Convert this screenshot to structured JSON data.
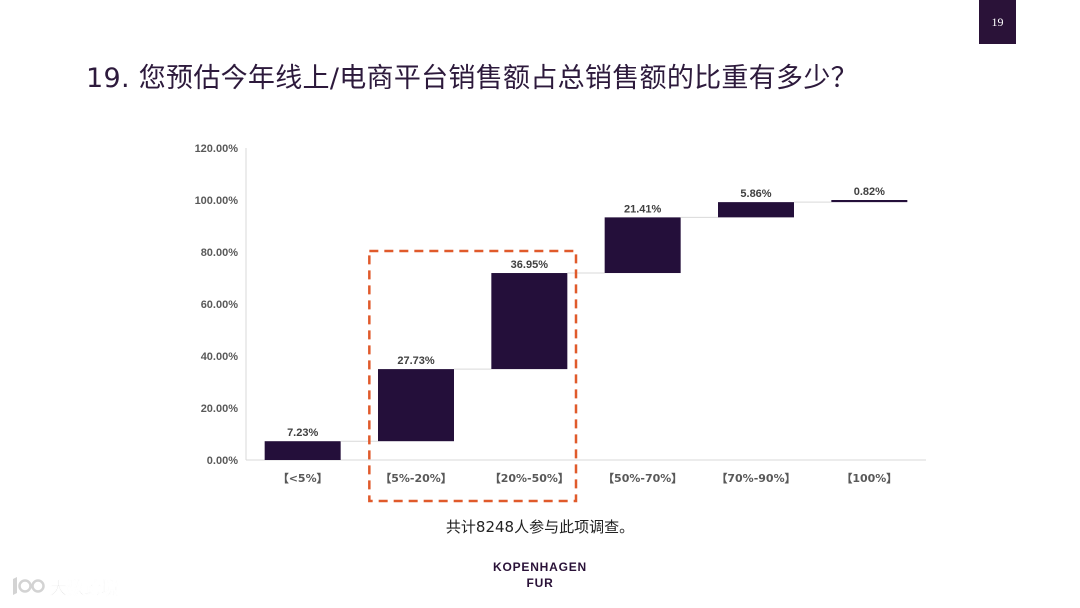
{
  "page_number": "19",
  "title": "19. 您预估今年线上/电商平台销售额占总销售额的比重有多少？",
  "footnote": "共计8248人参与此项调查。",
  "logo": {
    "line1": "KOPENHAGEN",
    "line2": "FUR"
  },
  "watermark": {
    "text": "大数跨境"
  },
  "colors": {
    "bar": "#240f3a",
    "highlight_box": "#e05a2b",
    "axis": "#d9d9d9",
    "connector": "#d9d9d9"
  },
  "chart_data": {
    "type": "bar",
    "subtype": "waterfall",
    "title": "",
    "xlabel": "",
    "ylabel": "",
    "categories": [
      "【<5%】",
      "【5%-20%】",
      "【20%-50%】",
      "【50%-70%】",
      "【70%-90%】",
      "【100%】"
    ],
    "values": [
      7.23,
      27.73,
      36.95,
      21.41,
      5.86,
      0.82
    ],
    "value_labels": [
      "7.23%",
      "27.73%",
      "36.95%",
      "21.41%",
      "5.86%",
      "0.82%"
    ],
    "ylim": [
      0,
      120
    ],
    "yticks": [
      0,
      20,
      40,
      60,
      80,
      100,
      120
    ],
    "ytick_labels": [
      "0.00%",
      "20.00%",
      "40.00%",
      "60.00%",
      "80.00%",
      "100.00%",
      "120.00%"
    ],
    "grid": false,
    "legend": false,
    "highlighted_categories": [
      "【5%-20%】",
      "【20%-50%】"
    ]
  }
}
